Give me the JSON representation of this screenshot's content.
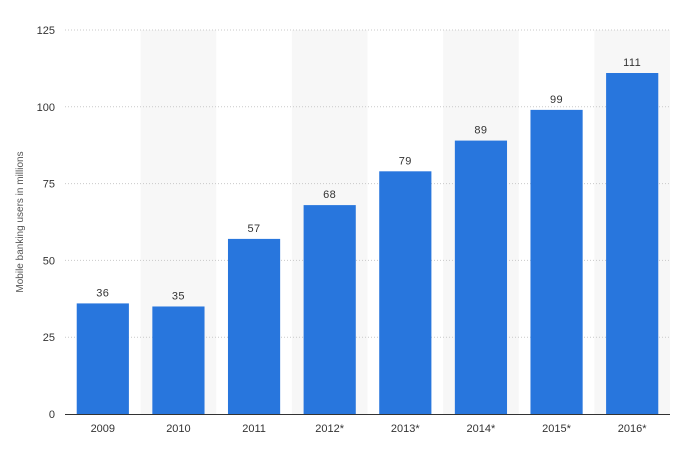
{
  "chart_data": {
    "type": "bar",
    "categories": [
      "2009",
      "2010",
      "2011",
      "2012*",
      "2013*",
      "2014*",
      "2015*",
      "2016*"
    ],
    "values": [
      36,
      35,
      57,
      68,
      79,
      89,
      99,
      111
    ],
    "data_labels": [
      "36",
      "35",
      "57",
      "68",
      "79",
      "89",
      "99",
      "111"
    ],
    "xlabel": "",
    "ylabel": "Mobile banking users in millions",
    "ylim": [
      0,
      125
    ],
    "yticks": [
      0,
      25,
      50,
      75,
      100,
      125
    ],
    "grid": true,
    "alternating_band_background": true,
    "colors": {
      "bar": "#2876dd",
      "band": "#f7f7f7",
      "grid": "#c9c9c9",
      "axis": "#333333"
    }
  }
}
